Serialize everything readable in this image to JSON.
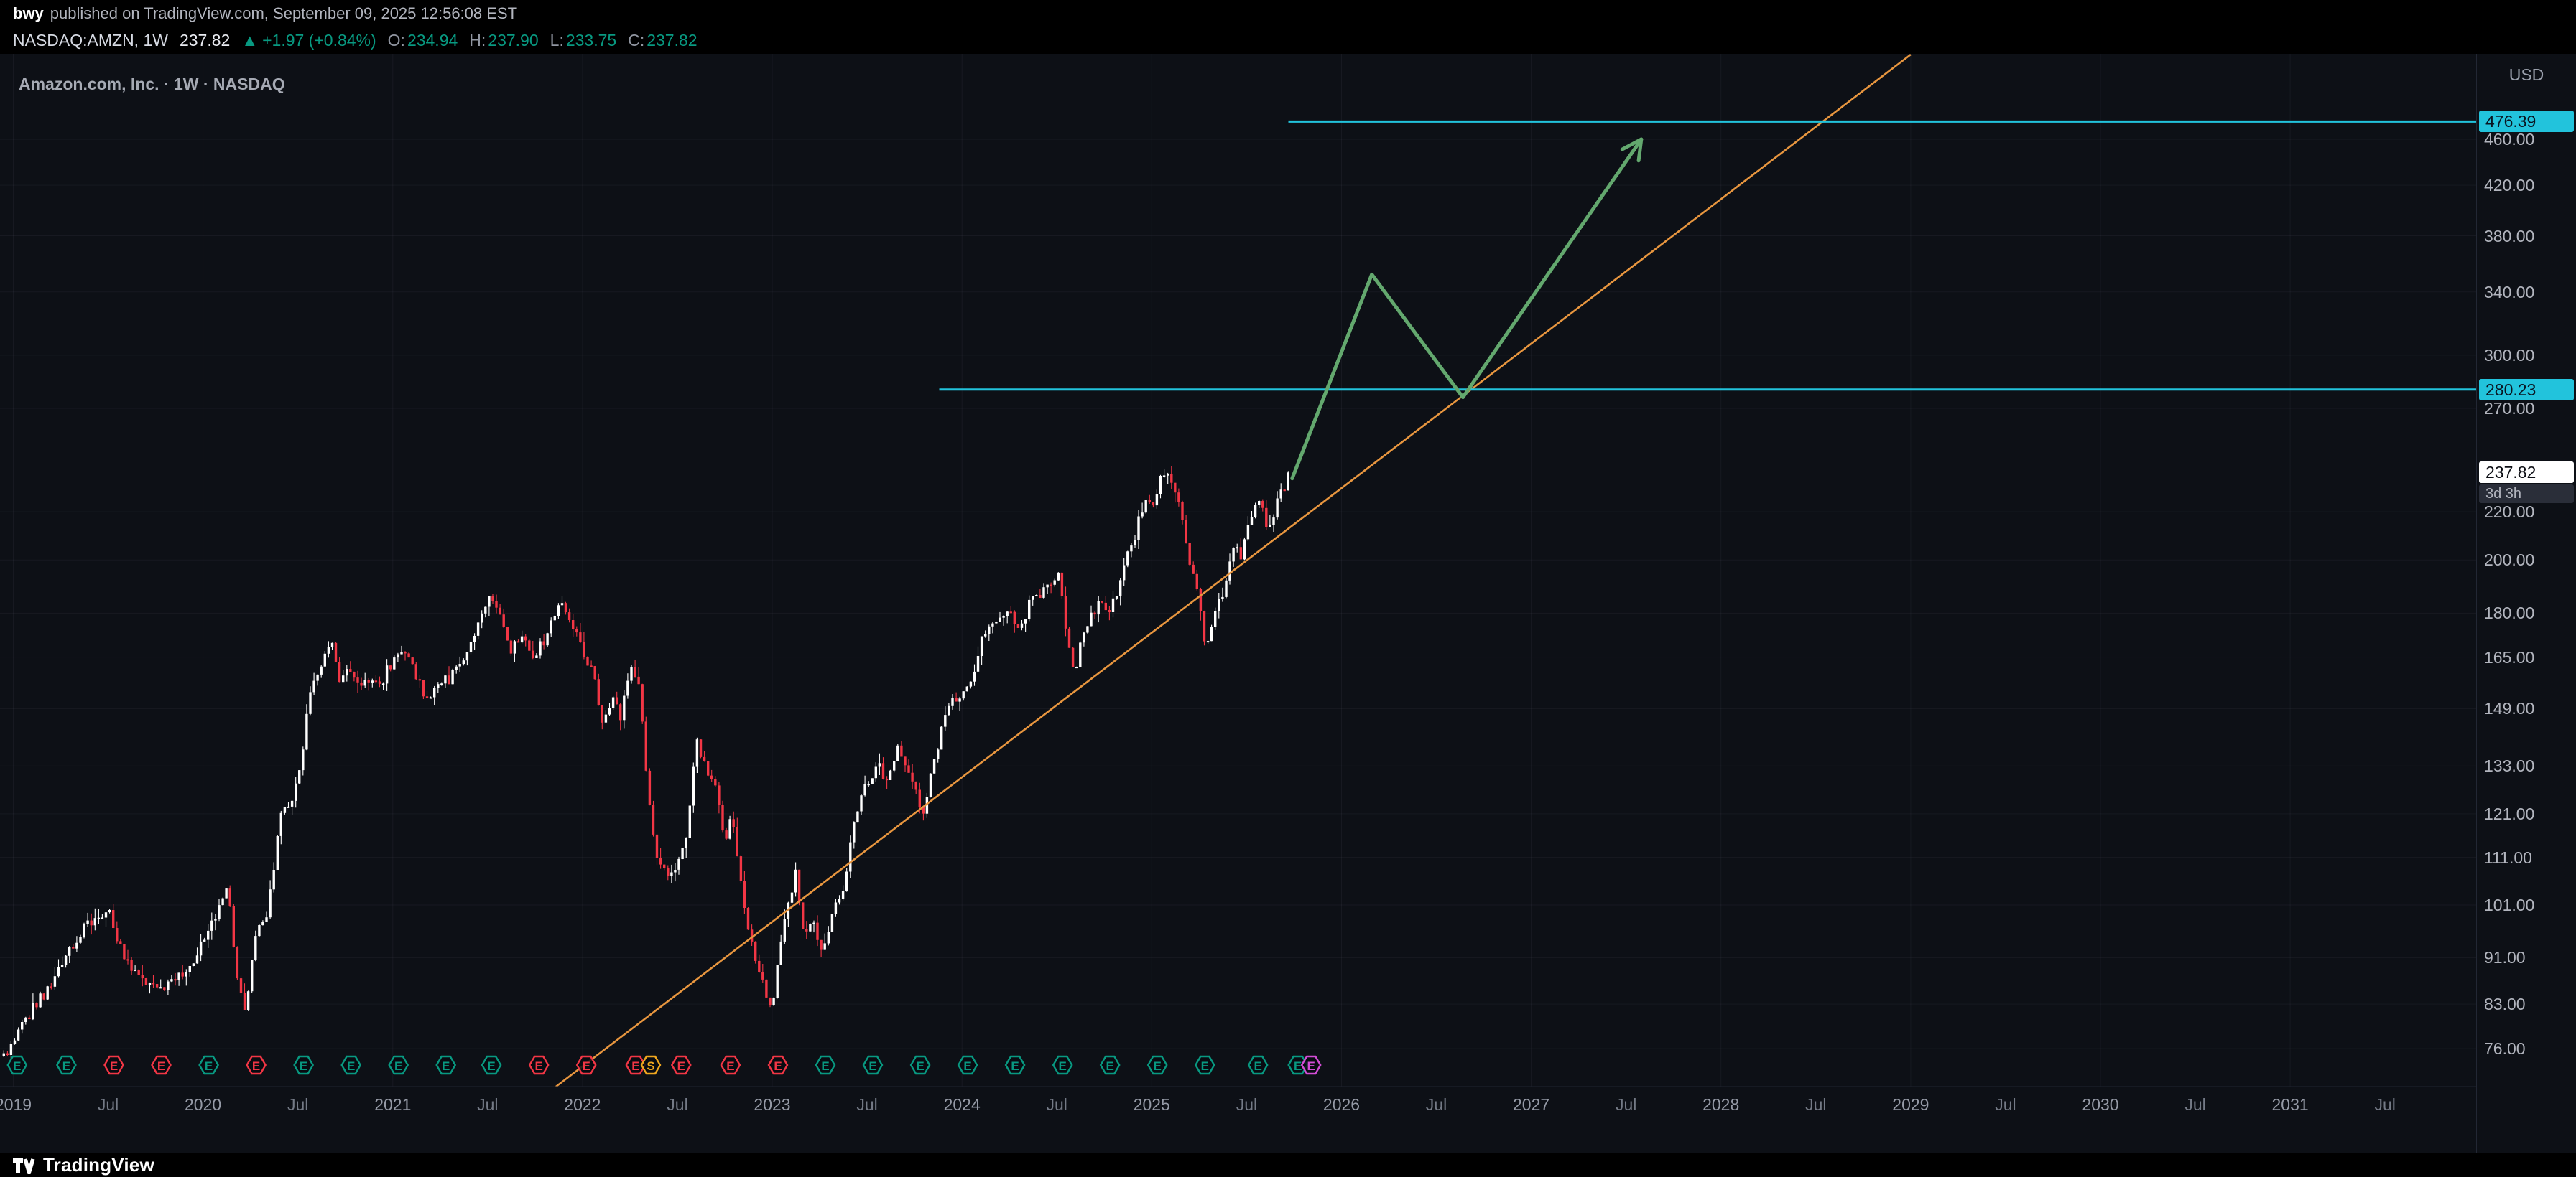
{
  "page": {
    "publisher": {
      "author": "bwy",
      "published_text": "published on TradingView.com, September 09, 2025 12:56:08 EST"
    },
    "symbol_bar": {
      "symbol": "NASDAQ:AMZN, 1W",
      "price": "237.82",
      "arrow_up_icon": "▲",
      "change": "+1.97 (+0.84%)",
      "ohlc": [
        {
          "label": "O:",
          "value": "234.94"
        },
        {
          "label": "H:",
          "value": "237.90"
        },
        {
          "label": "L:",
          "value": "233.75"
        },
        {
          "label": "C:",
          "value": "237.82"
        }
      ]
    },
    "chart_title": "Amazon.com, Inc. · 1W · NASDAQ",
    "axis_currency": "USD",
    "footer_brand": "TradingView"
  },
  "colors": {
    "background": "#000000",
    "pane": "#0d1016",
    "grid": "rgba(151,161,186,0.07)",
    "axis_text": "#b2b5be",
    "axis_text_dim": "#787d89",
    "up_candle": "#ffffff",
    "down_candle": "#f23645",
    "accent_cyan": "#22c3dc",
    "level_label_text": "#0a1622",
    "trendline_orange": "#e8963f",
    "projection_green": "#63a86e",
    "change_green": "#089981",
    "earnings_beat": "#089981",
    "earnings_miss": "#f23645",
    "split_yellow": "#f0a71f",
    "upcoming_purple": "#d34dd6",
    "last_price_label_bg": "#ffffff",
    "last_price_label_text": "#0c0e14",
    "countdown_bg": "#2a2e39",
    "countdown_text": "#b2b5be",
    "separator": "#1f2430"
  },
  "chart_data": {
    "type": "candlestick",
    "symbol": "NASDAQ:AMZN",
    "interval": "1W",
    "price_scale": "log",
    "x_domain": [
      2018.93,
      2031.98
    ],
    "price_range_visible": [
      70.5,
      544.8
    ],
    "price_axis_ticks": [
      460,
      420,
      380,
      340,
      300,
      270,
      220,
      200,
      180,
      165,
      149,
      133,
      121,
      111,
      101,
      91,
      83,
      76
    ],
    "time_axis_labels": [
      {
        "t": 2019,
        "label": "2019",
        "major": true
      },
      {
        "t": 2019.5,
        "label": "Jul",
        "major": false
      },
      {
        "t": 2020,
        "label": "2020",
        "major": true
      },
      {
        "t": 2020.5,
        "label": "Jul",
        "major": false
      },
      {
        "t": 2021,
        "label": "2021",
        "major": true
      },
      {
        "t": 2021.5,
        "label": "Jul",
        "major": false
      },
      {
        "t": 2022,
        "label": "2022",
        "major": true
      },
      {
        "t": 2022.5,
        "label": "Jul",
        "major": false
      },
      {
        "t": 2023,
        "label": "2023",
        "major": true
      },
      {
        "t": 2023.5,
        "label": "Jul",
        "major": false
      },
      {
        "t": 2024,
        "label": "2024",
        "major": true
      },
      {
        "t": 2024.5,
        "label": "Jul",
        "major": false
      },
      {
        "t": 2025,
        "label": "2025",
        "major": true
      },
      {
        "t": 2025.5,
        "label": "Jul",
        "major": false
      },
      {
        "t": 2026,
        "label": "2026",
        "major": true
      },
      {
        "t": 2026.5,
        "label": "Jul",
        "major": false
      },
      {
        "t": 2027,
        "label": "2027",
        "major": true
      },
      {
        "t": 2027.5,
        "label": "Jul",
        "major": false
      },
      {
        "t": 2028,
        "label": "2028",
        "major": true
      },
      {
        "t": 2028.5,
        "label": "Jul",
        "major": false
      },
      {
        "t": 2029,
        "label": "2029",
        "major": true
      },
      {
        "t": 2029.5,
        "label": "Jul",
        "major": false
      },
      {
        "t": 2030,
        "label": "2030",
        "major": true
      },
      {
        "t": 2030.5,
        "label": "Jul",
        "major": false
      },
      {
        "t": 2031,
        "label": "2031",
        "major": true
      },
      {
        "t": 2031.5,
        "label": "Jul",
        "major": false
      }
    ],
    "last_price": {
      "value": 237.82,
      "label": "237.82",
      "countdown": "3d 3h"
    },
    "levels": [
      {
        "value": 476.39,
        "label": "476.39",
        "start_t": 2025.72
      },
      {
        "value": 280.23,
        "label": "280.23",
        "start_t": 2023.88
      }
    ],
    "trendline": {
      "p1": [
        2021.86,
        70.5
      ],
      "p2": [
        2029.0,
        544.0
      ]
    },
    "projection": {
      "points": [
        [
          2025.74,
          235
        ],
        [
          2026.16,
          352
        ],
        [
          2026.64,
          276
        ],
        [
          2027.58,
          460
        ]
      ]
    },
    "earnings_markers": [
      [
        2019.02,
        "beat"
      ],
      [
        2019.28,
        "beat"
      ],
      [
        2019.53,
        "miss"
      ],
      [
        2019.78,
        "miss"
      ],
      [
        2020.03,
        "beat"
      ],
      [
        2020.28,
        "miss"
      ],
      [
        2020.53,
        "beat"
      ],
      [
        2020.78,
        "beat"
      ],
      [
        2021.03,
        "beat"
      ],
      [
        2021.28,
        "beat"
      ],
      [
        2021.52,
        "beat"
      ],
      [
        2021.77,
        "miss"
      ],
      [
        2022.02,
        "miss"
      ],
      [
        2022.28,
        "miss"
      ],
      [
        2022.36,
        "split"
      ],
      [
        2022.52,
        "miss"
      ],
      [
        2022.78,
        "miss"
      ],
      [
        2023.03,
        "miss"
      ],
      [
        2023.28,
        "beat"
      ],
      [
        2023.53,
        "beat"
      ],
      [
        2023.78,
        "beat"
      ],
      [
        2024.03,
        "beat"
      ],
      [
        2024.28,
        "beat"
      ],
      [
        2024.53,
        "beat"
      ],
      [
        2024.78,
        "beat"
      ],
      [
        2025.03,
        "beat"
      ],
      [
        2025.28,
        "beat"
      ],
      [
        2025.56,
        "beat"
      ],
      [
        2025.77,
        "beat"
      ],
      [
        2025.84,
        "upcoming"
      ]
    ],
    "candles": {
      "start_t": 2018.95,
      "end_t": 2025.72,
      "interval_years": 0.019231,
      "close_anchors": [
        [
          2018.93,
          74
        ],
        [
          2019.0,
          77
        ],
        [
          2019.05,
          80
        ],
        [
          2019.12,
          83
        ],
        [
          2019.2,
          86
        ],
        [
          2019.28,
          91
        ],
        [
          2019.36,
          96
        ],
        [
          2019.44,
          98
        ],
        [
          2019.5,
          101
        ],
        [
          2019.56,
          93
        ],
        [
          2019.62,
          89
        ],
        [
          2019.7,
          87
        ],
        [
          2019.78,
          85.5
        ],
        [
          2019.84,
          86.5
        ],
        [
          2019.92,
          89
        ],
        [
          2020.0,
          94
        ],
        [
          2020.08,
          100
        ],
        [
          2020.13,
          104
        ],
        [
          2020.18,
          88
        ],
        [
          2020.22,
          81.5
        ],
        [
          2020.28,
          95
        ],
        [
          2020.34,
          99
        ],
        [
          2020.4,
          119
        ],
        [
          2020.46,
          124
        ],
        [
          2020.52,
          134
        ],
        [
          2020.56,
          155
        ],
        [
          2020.62,
          160
        ],
        [
          2020.68,
          172
        ],
        [
          2020.72,
          157
        ],
        [
          2020.78,
          161
        ],
        [
          2020.83,
          154
        ],
        [
          2020.88,
          159
        ],
        [
          2020.94,
          157
        ],
        [
          2021.0,
          164
        ],
        [
          2021.06,
          167
        ],
        [
          2021.12,
          160
        ],
        [
          2021.18,
          151
        ],
        [
          2021.24,
          156
        ],
        [
          2021.3,
          158
        ],
        [
          2021.36,
          163
        ],
        [
          2021.42,
          172
        ],
        [
          2021.47,
          181
        ],
        [
          2021.52,
          186
        ],
        [
          2021.57,
          180
        ],
        [
          2021.62,
          167
        ],
        [
          2021.68,
          172
        ],
        [
          2021.74,
          164
        ],
        [
          2021.8,
          171
        ],
        [
          2021.86,
          180
        ],
        [
          2021.9,
          185
        ],
        [
          2021.95,
          174
        ],
        [
          2022.0,
          167
        ],
        [
          2022.06,
          159
        ],
        [
          2022.1,
          144
        ],
        [
          2022.16,
          153
        ],
        [
          2022.2,
          146
        ],
        [
          2022.25,
          163
        ],
        [
          2022.3,
          155
        ],
        [
          2022.35,
          124
        ],
        [
          2022.4,
          110
        ],
        [
          2022.45,
          106
        ],
        [
          2022.5,
          110
        ],
        [
          2022.55,
          116
        ],
        [
          2022.6,
          140
        ],
        [
          2022.64,
          134
        ],
        [
          2022.7,
          127
        ],
        [
          2022.75,
          114
        ],
        [
          2022.79,
          121
        ],
        [
          2022.84,
          103
        ],
        [
          2022.89,
          94
        ],
        [
          2022.94,
          87
        ],
        [
          2023.0,
          82
        ],
        [
          2023.04,
          94
        ],
        [
          2023.08,
          100
        ],
        [
          2023.12,
          108
        ],
        [
          2023.17,
          95
        ],
        [
          2023.21,
          98
        ],
        [
          2023.26,
          92
        ],
        [
          2023.32,
          100
        ],
        [
          2023.38,
          105
        ],
        [
          2023.43,
          118
        ],
        [
          2023.48,
          126
        ],
        [
          2023.52,
          130
        ],
        [
          2023.57,
          133
        ],
        [
          2023.61,
          128
        ],
        [
          2023.66,
          139
        ],
        [
          2023.71,
          133
        ],
        [
          2023.76,
          126
        ],
        [
          2023.8,
          121
        ],
        [
          2023.85,
          134
        ],
        [
          2023.9,
          144
        ],
        [
          2023.95,
          151
        ],
        [
          2024.0,
          154
        ],
        [
          2024.05,
          158
        ],
        [
          2024.1,
          171
        ],
        [
          2024.15,
          174
        ],
        [
          2024.21,
          177
        ],
        [
          2024.26,
          181
        ],
        [
          2024.3,
          172
        ],
        [
          2024.35,
          183
        ],
        [
          2024.4,
          186
        ],
        [
          2024.45,
          189
        ],
        [
          2024.5,
          196
        ],
        [
          2024.53,
          184
        ],
        [
          2024.56,
          168
        ],
        [
          2024.59,
          159
        ],
        [
          2024.63,
          172
        ],
        [
          2024.68,
          178
        ],
        [
          2024.73,
          186
        ],
        [
          2024.77,
          181
        ],
        [
          2024.82,
          189
        ],
        [
          2024.86,
          199
        ],
        [
          2024.9,
          207
        ],
        [
          2024.94,
          220
        ],
        [
          2024.97,
          227
        ],
        [
          2025.0,
          223
        ],
        [
          2025.04,
          234
        ],
        [
          2025.09,
          240
        ],
        [
          2025.13,
          228
        ],
        [
          2025.17,
          212
        ],
        [
          2025.21,
          196
        ],
        [
          2025.25,
          188
        ],
        [
          2025.28,
          168
        ],
        [
          2025.31,
          175
        ],
        [
          2025.35,
          185
        ],
        [
          2025.39,
          190
        ],
        [
          2025.43,
          206
        ],
        [
          2025.47,
          201
        ],
        [
          2025.51,
          213
        ],
        [
          2025.55,
          222
        ],
        [
          2025.58,
          226
        ],
        [
          2025.61,
          213
        ],
        [
          2025.65,
          221
        ],
        [
          2025.68,
          231
        ],
        [
          2025.7,
          228
        ],
        [
          2025.72,
          237.8
        ]
      ]
    }
  }
}
